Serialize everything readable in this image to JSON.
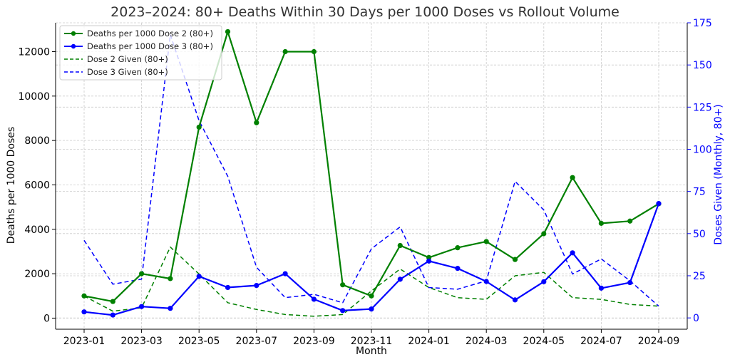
{
  "chart_data": {
    "type": "line",
    "title": "2023–2024: 80+ Deaths Within 30 Days per 1000 Doses vs Rollout Volume",
    "xlabel": "Month",
    "ylabel_left": "Deaths per 1000 Doses",
    "ylabel_right": "Doses Given (Monthly, 80+)",
    "x": [
      "2023-01",
      "2023-02",
      "2023-03",
      "2023-04",
      "2023-05",
      "2023-06",
      "2023-07",
      "2023-08",
      "2023-09",
      "2023-10",
      "2023-11",
      "2023-12",
      "2024-01",
      "2024-02",
      "2024-03",
      "2024-04",
      "2024-05",
      "2024-06",
      "2024-07",
      "2024-08",
      "2024-09"
    ],
    "x_tick_labels": [
      "2023-01",
      "2023-03",
      "2023-05",
      "2023-07",
      "2023-09",
      "2023-11",
      "2024-01",
      "2024-03",
      "2024-05",
      "2024-07",
      "2024-09"
    ],
    "ylim_left": [
      -500,
      13300
    ],
    "yticks_left": [
      0,
      2000,
      4000,
      6000,
      8000,
      10000,
      12000
    ],
    "ylim_right": [
      -6.7,
      175
    ],
    "yticks_right": [
      0,
      25,
      50,
      75,
      100,
      125,
      150,
      175
    ],
    "grid": true,
    "legend_position": "top-left",
    "series": [
      {
        "name": "Deaths per 1000 Dose 2 (80+)",
        "axis": "left",
        "style": "solid-marker",
        "color": "#008000",
        "values": [
          1000,
          750,
          2000,
          1780,
          8600,
          12900,
          8800,
          12000,
          12000,
          1500,
          1000,
          3270,
          2730,
          3170,
          3450,
          2640,
          3800,
          6330,
          4270,
          4370,
          5150
        ]
      },
      {
        "name": "Deaths per 1000 Dose 3 (80+)",
        "axis": "left",
        "style": "solid-marker",
        "color": "#0000ff",
        "values": [
          280,
          140,
          520,
          440,
          1880,
          1380,
          1470,
          2000,
          850,
          340,
          410,
          1750,
          2570,
          2240,
          1650,
          820,
          1640,
          2940,
          1350,
          1600,
          5160
        ]
      },
      {
        "name": "Dose 2 Given (80+)",
        "axis": "right",
        "style": "dashed",
        "color": "#008000",
        "values": [
          13,
          4,
          6,
          42,
          26,
          9,
          5,
          2,
          1,
          2,
          16,
          29,
          18,
          12,
          11,
          25,
          27,
          12,
          11,
          8,
          7
        ]
      },
      {
        "name": "Dose 3 Given (80+)",
        "axis": "right",
        "style": "dashed",
        "color": "#0000ff",
        "values": [
          46,
          20,
          23,
          168,
          117,
          84,
          30,
          12,
          14,
          9,
          41,
          54,
          18,
          17,
          22,
          81,
          64,
          26,
          35,
          22,
          7
        ]
      }
    ]
  }
}
